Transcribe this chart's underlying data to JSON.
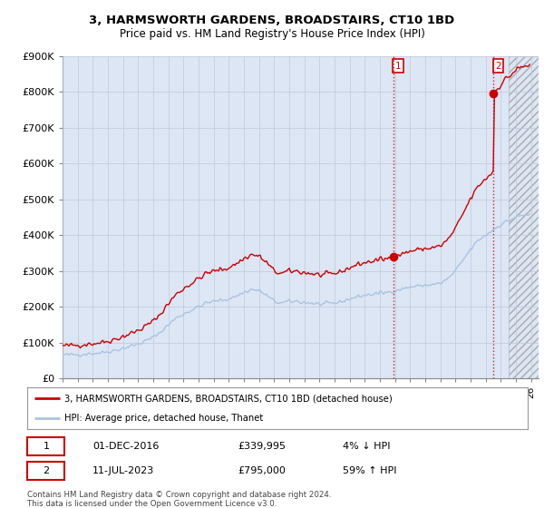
{
  "title": "3, HARMSWORTH GARDENS, BROADSTAIRS, CT10 1BD",
  "subtitle": "Price paid vs. HM Land Registry's House Price Index (HPI)",
  "ylabel_ticks": [
    "£0",
    "£100K",
    "£200K",
    "£300K",
    "£400K",
    "£500K",
    "£600K",
    "£700K",
    "£800K",
    "£900K"
  ],
  "ytick_values": [
    0,
    100000,
    200000,
    300000,
    400000,
    500000,
    600000,
    700000,
    800000,
    900000
  ],
  "ylim": [
    0,
    900000
  ],
  "xlim_start": 1995.0,
  "xlim_end": 2026.5,
  "hpi_color": "#aac4e0",
  "price_color": "#cc0000",
  "sale1_year": 2016.92,
  "sale1_price": 339995,
  "sale2_year": 2023.53,
  "sale2_price": 795000,
  "hatch_start": 2024.5,
  "legend_label1": "3, HARMSWORTH GARDENS, BROADSTAIRS, CT10 1BD (detached house)",
  "legend_label2": "HPI: Average price, detached house, Thanet",
  "note1_num": "1",
  "note1_date": "01-DEC-2016",
  "note1_price": "£339,995",
  "note1_hpi": "4% ↓ HPI",
  "note2_num": "2",
  "note2_date": "11-JUL-2023",
  "note2_price": "£795,000",
  "note2_hpi": "59% ↑ HPI",
  "footer": "Contains HM Land Registry data © Crown copyright and database right 2024.\nThis data is licensed under the Open Government Licence v3.0.",
  "background_color": "#dce6f5",
  "plot_bg_color": "#ffffff",
  "grid_color": "#c0c8d8"
}
